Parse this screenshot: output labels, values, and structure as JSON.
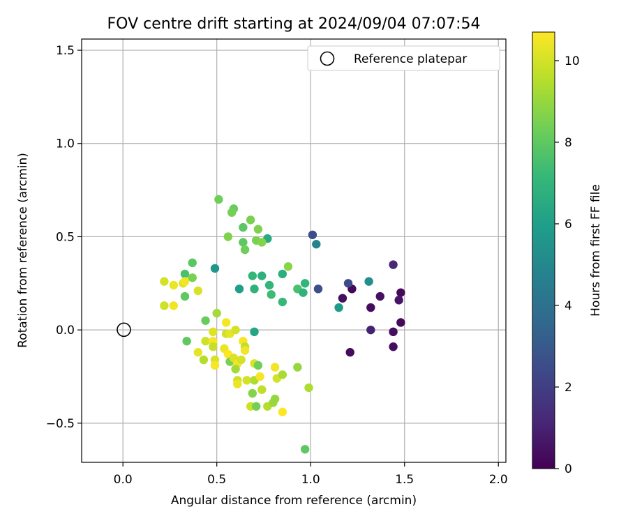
{
  "chart_data": {
    "type": "scatter",
    "title": "FOV centre drift starting at 2024/09/04 07:07:54",
    "xlabel": "Angular distance from reference (arcmin)",
    "ylabel": "Rotation from reference (arcmin)",
    "xlim": [
      -0.22,
      2.04
    ],
    "ylim": [
      -0.71,
      1.56
    ],
    "xticks": [
      0.0,
      0.5,
      1.0,
      1.5,
      2.0
    ],
    "xtick_labels": [
      "0.0",
      "0.5",
      "1.0",
      "1.5",
      "2.0"
    ],
    "yticks": [
      -0.5,
      0.0,
      0.5,
      1.0,
      1.5
    ],
    "ytick_labels": [
      "−0.5",
      "0.0",
      "0.5",
      "1.0",
      "1.5"
    ],
    "grid": true,
    "legend": {
      "position": "top-right",
      "label": "Reference platepar"
    },
    "reference_point": {
      "x": 0.0,
      "y": 0.0
    },
    "colorbar": {
      "label": "Hours from first FF file",
      "range": [
        0,
        10.7
      ],
      "ticks": [
        0,
        2,
        4,
        6,
        8,
        10
      ],
      "tick_labels": [
        "0",
        "2",
        "4",
        "6",
        "8",
        "10"
      ],
      "colormap": "viridis"
    },
    "colormap_stops": [
      "#440154",
      "#482878",
      "#3e4989",
      "#31688e",
      "#26828e",
      "#1f9e89",
      "#35b779",
      "#6ece58",
      "#b5de2b",
      "#fde725"
    ],
    "series": [
      {
        "points": [
          {
            "x": 1.48,
            "y": 0.2,
            "c": 0.2
          },
          {
            "x": 1.47,
            "y": 0.16,
            "c": 0.6
          },
          {
            "x": 1.48,
            "y": 0.04,
            "c": 0.2
          },
          {
            "x": 1.44,
            "y": -0.01,
            "c": 0.4
          },
          {
            "x": 1.44,
            "y": -0.09,
            "c": 0.3
          },
          {
            "x": 1.44,
            "y": 0.35,
            "c": 1.2
          },
          {
            "x": 1.37,
            "y": 0.18,
            "c": 0.5
          },
          {
            "x": 1.32,
            "y": 0.12,
            "c": 0.3
          },
          {
            "x": 1.32,
            "y": 0.0,
            "c": 1.0
          },
          {
            "x": 1.22,
            "y": 0.22,
            "c": 0.2
          },
          {
            "x": 1.21,
            "y": -0.12,
            "c": 0.3
          },
          {
            "x": 1.17,
            "y": 0.17,
            "c": 0.4
          },
          {
            "x": 1.2,
            "y": 0.25,
            "c": 2.4
          },
          {
            "x": 1.04,
            "y": 0.22,
            "c": 2.6
          },
          {
            "x": 1.01,
            "y": 0.51,
            "c": 2.5
          },
          {
            "x": 1.03,
            "y": 0.46,
            "c": 4.8
          },
          {
            "x": 1.31,
            "y": 0.26,
            "c": 5.3
          },
          {
            "x": 1.15,
            "y": 0.12,
            "c": 5.8
          },
          {
            "x": 0.49,
            "y": 0.33,
            "c": 5.6
          },
          {
            "x": 0.62,
            "y": 0.22,
            "c": 6.0
          },
          {
            "x": 0.7,
            "y": -0.01,
            "c": 6.3
          },
          {
            "x": 0.77,
            "y": 0.49,
            "c": 6.5
          },
          {
            "x": 0.85,
            "y": 0.3,
            "c": 6.7
          },
          {
            "x": 0.97,
            "y": 0.25,
            "c": 7.0
          },
          {
            "x": 0.74,
            "y": 0.29,
            "c": 6.8
          },
          {
            "x": 0.69,
            "y": 0.29,
            "c": 7.1
          },
          {
            "x": 0.78,
            "y": 0.24,
            "c": 7.0
          },
          {
            "x": 0.7,
            "y": 0.22,
            "c": 6.9
          },
          {
            "x": 0.79,
            "y": 0.19,
            "c": 7.3
          },
          {
            "x": 0.85,
            "y": 0.15,
            "c": 7.2
          },
          {
            "x": 0.93,
            "y": 0.22,
            "c": 7.6
          },
          {
            "x": 0.96,
            "y": 0.2,
            "c": 6.9
          },
          {
            "x": 0.51,
            "y": 0.7,
            "c": 8.3
          },
          {
            "x": 0.59,
            "y": 0.65,
            "c": 8.2
          },
          {
            "x": 0.58,
            "y": 0.63,
            "c": 8.4
          },
          {
            "x": 0.68,
            "y": 0.59,
            "c": 8.5
          },
          {
            "x": 0.64,
            "y": 0.55,
            "c": 7.9
          },
          {
            "x": 0.72,
            "y": 0.54,
            "c": 8.6
          },
          {
            "x": 0.56,
            "y": 0.5,
            "c": 8.6
          },
          {
            "x": 0.64,
            "y": 0.47,
            "c": 8.0
          },
          {
            "x": 0.71,
            "y": 0.48,
            "c": 8.5
          },
          {
            "x": 0.74,
            "y": 0.47,
            "c": 8.7
          },
          {
            "x": 0.65,
            "y": 0.43,
            "c": 8.3
          },
          {
            "x": 0.88,
            "y": 0.34,
            "c": 8.8
          },
          {
            "x": 0.37,
            "y": 0.36,
            "c": 7.9
          },
          {
            "x": 0.33,
            "y": 0.3,
            "c": 7.6
          },
          {
            "x": 0.37,
            "y": 0.28,
            "c": 8.5
          },
          {
            "x": 0.33,
            "y": 0.18,
            "c": 8.0
          },
          {
            "x": 0.44,
            "y": 0.05,
            "c": 8.2
          },
          {
            "x": 0.34,
            "y": -0.06,
            "c": 8.0
          },
          {
            "x": 0.5,
            "y": 0.09,
            "c": 9.2
          },
          {
            "x": 0.22,
            "y": 0.26,
            "c": 10.0
          },
          {
            "x": 0.27,
            "y": 0.24,
            "c": 10.4
          },
          {
            "x": 0.32,
            "y": 0.25,
            "c": 10.2
          },
          {
            "x": 0.33,
            "y": 0.26,
            "c": 10.5
          },
          {
            "x": 0.4,
            "y": 0.21,
            "c": 10.1
          },
          {
            "x": 0.22,
            "y": 0.13,
            "c": 9.9
          },
          {
            "x": 0.27,
            "y": 0.13,
            "c": 10.5
          },
          {
            "x": 0.48,
            "y": -0.01,
            "c": 10.2
          },
          {
            "x": 0.44,
            "y": -0.06,
            "c": 9.9
          },
          {
            "x": 0.48,
            "y": -0.06,
            "c": 10.6
          },
          {
            "x": 0.4,
            "y": -0.12,
            "c": 10.3
          },
          {
            "x": 0.43,
            "y": -0.16,
            "c": 9.5
          },
          {
            "x": 0.48,
            "y": -0.09,
            "c": 9.8
          },
          {
            "x": 0.49,
            "y": -0.16,
            "c": 10.1
          },
          {
            "x": 0.49,
            "y": -0.19,
            "c": 10.6
          },
          {
            "x": 0.55,
            "y": -0.02,
            "c": 9.9
          },
          {
            "x": 0.57,
            "y": -0.02,
            "c": 10.3
          },
          {
            "x": 0.6,
            "y": 0.0,
            "c": 10.0
          },
          {
            "x": 0.55,
            "y": 0.04,
            "c": 10.6
          },
          {
            "x": 0.54,
            "y": -0.1,
            "c": 10.4
          },
          {
            "x": 0.56,
            "y": -0.13,
            "c": 10.7
          },
          {
            "x": 0.57,
            "y": -0.17,
            "c": 8.5
          },
          {
            "x": 0.59,
            "y": -0.15,
            "c": 10.1
          },
          {
            "x": 0.61,
            "y": -0.18,
            "c": 10.5
          },
          {
            "x": 0.6,
            "y": -0.21,
            "c": 9.2
          },
          {
            "x": 0.63,
            "y": -0.16,
            "c": 10.0
          },
          {
            "x": 0.64,
            "y": -0.06,
            "c": 10.6
          },
          {
            "x": 0.65,
            "y": -0.09,
            "c": 9.7
          },
          {
            "x": 0.65,
            "y": -0.11,
            "c": 10.5
          },
          {
            "x": 0.61,
            "y": -0.27,
            "c": 9.9
          },
          {
            "x": 0.61,
            "y": -0.29,
            "c": 10.4
          },
          {
            "x": 0.66,
            "y": -0.27,
            "c": 10.0
          },
          {
            "x": 0.7,
            "y": -0.27,
            "c": 9.4
          },
          {
            "x": 0.7,
            "y": -0.18,
            "c": 10.1
          },
          {
            "x": 0.72,
            "y": -0.19,
            "c": 8.3
          },
          {
            "x": 0.73,
            "y": -0.25,
            "c": 10.6
          },
          {
            "x": 0.74,
            "y": -0.32,
            "c": 9.7
          },
          {
            "x": 0.69,
            "y": -0.34,
            "c": 8.7
          },
          {
            "x": 0.68,
            "y": -0.41,
            "c": 9.9
          },
          {
            "x": 0.71,
            "y": -0.41,
            "c": 8.4
          },
          {
            "x": 0.77,
            "y": -0.41,
            "c": 9.5
          },
          {
            "x": 0.8,
            "y": -0.39,
            "c": 9.1
          },
          {
            "x": 0.81,
            "y": -0.37,
            "c": 9.0
          },
          {
            "x": 0.85,
            "y": -0.44,
            "c": 10.7
          },
          {
            "x": 0.81,
            "y": -0.2,
            "c": 10.5
          },
          {
            "x": 0.82,
            "y": -0.26,
            "c": 10.0
          },
          {
            "x": 0.85,
            "y": -0.24,
            "c": 9.3
          },
          {
            "x": 0.93,
            "y": -0.2,
            "c": 9.0
          },
          {
            "x": 0.99,
            "y": -0.31,
            "c": 9.4
          },
          {
            "x": 0.97,
            "y": -0.64,
            "c": 8.0
          }
        ]
      }
    ]
  }
}
